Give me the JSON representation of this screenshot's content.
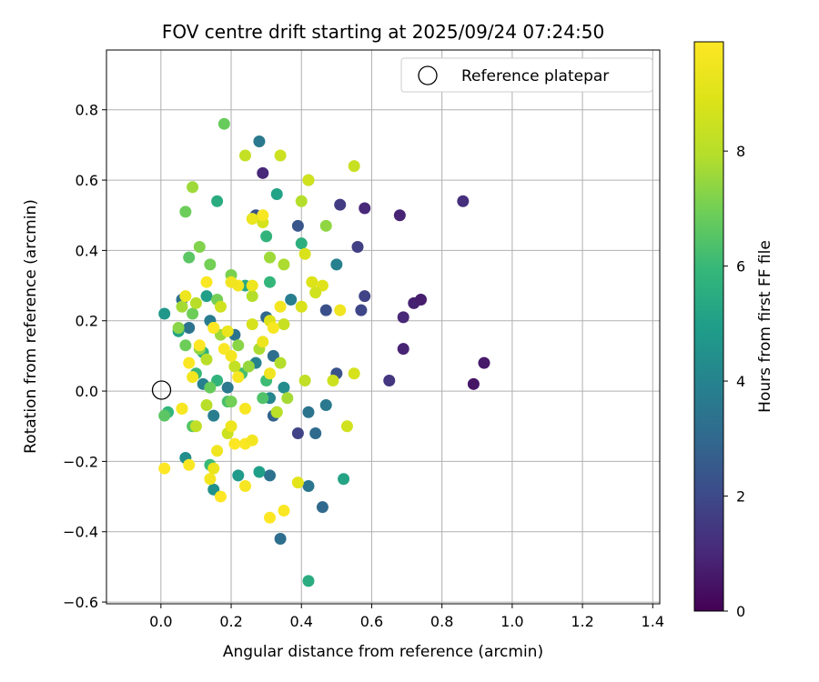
{
  "chart_data": {
    "type": "scatter",
    "title": "FOV centre drift starting at 2025/09/24 07:24:50",
    "xlabel": "Angular distance from reference (arcmin)",
    "ylabel": "Rotation from reference (arcmin)",
    "xlim": [
      -0.155,
      1.42
    ],
    "ylim": [
      -0.605,
      0.97
    ],
    "xticks": [
      0.0,
      0.2,
      0.4,
      0.6,
      0.8,
      1.0,
      1.2,
      1.4
    ],
    "xtick_labels": [
      "0.0",
      "0.2",
      "0.4",
      "0.6",
      "0.8",
      "1.0",
      "1.2",
      "1.4"
    ],
    "yticks": [
      -0.6,
      -0.4,
      -0.2,
      0.0,
      0.2,
      0.4,
      0.6,
      0.8
    ],
    "ytick_labels": [
      "−0.6",
      "−0.4",
      "−0.2",
      "0.0",
      "0.2",
      "0.4",
      "0.6",
      "0.8"
    ],
    "grid": true,
    "legend": {
      "label": "Reference platepar",
      "placement": "top-right"
    },
    "reference_point": {
      "x": 0.0,
      "y": 0.0
    },
    "colorbar": {
      "label": "Hours from first FF file",
      "colormap": "viridis",
      "min": 0,
      "max": 9.9,
      "ticks": [
        0,
        2,
        4,
        6,
        8
      ],
      "tick_labels": [
        "0",
        "2",
        "4",
        "6",
        "8"
      ]
    },
    "points": [
      {
        "x": 0.86,
        "y": 0.54,
        "h": 1.2
      },
      {
        "x": 0.58,
        "y": 0.52,
        "h": 1.0
      },
      {
        "x": 0.68,
        "y": 0.5,
        "h": 0.9
      },
      {
        "x": 0.51,
        "y": 0.53,
        "h": 1.6
      },
      {
        "x": 0.29,
        "y": 0.62,
        "h": 1.0
      },
      {
        "x": 0.56,
        "y": 0.41,
        "h": 1.7
      },
      {
        "x": 0.72,
        "y": 0.25,
        "h": 0.8
      },
      {
        "x": 0.74,
        "y": 0.26,
        "h": 0.7
      },
      {
        "x": 0.69,
        "y": 0.21,
        "h": 1.0
      },
      {
        "x": 0.58,
        "y": 0.27,
        "h": 1.8
      },
      {
        "x": 0.57,
        "y": 0.23,
        "h": 1.9
      },
      {
        "x": 0.47,
        "y": 0.23,
        "h": 2.2
      },
      {
        "x": 0.69,
        "y": 0.12,
        "h": 0.9
      },
      {
        "x": 0.65,
        "y": 0.03,
        "h": 1.4
      },
      {
        "x": 0.92,
        "y": 0.08,
        "h": 0.6
      },
      {
        "x": 0.89,
        "y": 0.02,
        "h": 0.5
      },
      {
        "x": 0.39,
        "y": 0.47,
        "h": 2.4
      },
      {
        "x": 0.27,
        "y": 0.5,
        "h": 2.3
      },
      {
        "x": 0.39,
        "y": -0.12,
        "h": 1.8
      },
      {
        "x": 0.5,
        "y": 0.05,
        "h": 2.3
      },
      {
        "x": 0.44,
        "y": -0.12,
        "h": 3.1
      },
      {
        "x": 0.46,
        "y": -0.33,
        "h": 3.0
      },
      {
        "x": 0.34,
        "y": -0.42,
        "h": 3.2
      },
      {
        "x": 0.32,
        "y": -0.07,
        "h": 2.8
      },
      {
        "x": 0.42,
        "y": -0.27,
        "h": 3.5
      },
      {
        "x": 0.31,
        "y": -0.24,
        "h": 3.3
      },
      {
        "x": 0.47,
        "y": -0.04,
        "h": 3.6
      },
      {
        "x": 0.42,
        "y": -0.06,
        "h": 3.4
      },
      {
        "x": 0.28,
        "y": 0.71,
        "h": 3.6
      },
      {
        "x": 0.3,
        "y": 0.21,
        "h": 3.0
      },
      {
        "x": 0.32,
        "y": 0.1,
        "h": 3.2
      },
      {
        "x": 0.37,
        "y": 0.26,
        "h": 3.8
      },
      {
        "x": 0.5,
        "y": 0.36,
        "h": 3.9
      },
      {
        "x": 0.21,
        "y": 0.16,
        "h": 3.4
      },
      {
        "x": 0.19,
        "y": 0.01,
        "h": 3.6
      },
      {
        "x": 0.15,
        "y": -0.07,
        "h": 3.8
      },
      {
        "x": 0.12,
        "y": 0.02,
        "h": 3.9
      },
      {
        "x": 0.06,
        "y": 0.26,
        "h": 3.3
      },
      {
        "x": 0.08,
        "y": 0.18,
        "h": 3.4
      },
      {
        "x": 0.14,
        "y": 0.2,
        "h": 3.7
      },
      {
        "x": 0.27,
        "y": 0.08,
        "h": 4.0
      },
      {
        "x": 0.31,
        "y": -0.02,
        "h": 4.1
      },
      {
        "x": 0.35,
        "y": 0.01,
        "h": 4.3
      },
      {
        "x": 0.07,
        "y": -0.19,
        "h": 4.4
      },
      {
        "x": 0.15,
        "y": -0.28,
        "h": 4.5
      },
      {
        "x": 0.22,
        "y": -0.24,
        "h": 4.8
      },
      {
        "x": 0.28,
        "y": -0.23,
        "h": 5.0
      },
      {
        "x": 0.42,
        "y": -0.54,
        "h": 5.5
      },
      {
        "x": 0.52,
        "y": -0.25,
        "h": 5.2
      },
      {
        "x": 0.33,
        "y": 0.56,
        "h": 5.1
      },
      {
        "x": 0.16,
        "y": 0.54,
        "h": 5.5
      },
      {
        "x": 0.3,
        "y": 0.44,
        "h": 5.8
      },
      {
        "x": 0.4,
        "y": 0.42,
        "h": 5.6
      },
      {
        "x": 0.31,
        "y": 0.31,
        "h": 5.9
      },
      {
        "x": 0.24,
        "y": 0.3,
        "h": 5.4
      },
      {
        "x": 0.13,
        "y": 0.27,
        "h": 5.0
      },
      {
        "x": 0.01,
        "y": 0.22,
        "h": 4.7
      },
      {
        "x": 0.05,
        "y": 0.17,
        "h": 5.2
      },
      {
        "x": 0.12,
        "y": 0.11,
        "h": 5.7
      },
      {
        "x": 0.1,
        "y": 0.05,
        "h": 6.0
      },
      {
        "x": 0.16,
        "y": 0.03,
        "h": 5.8
      },
      {
        "x": 0.23,
        "y": 0.05,
        "h": 6.2
      },
      {
        "x": 0.3,
        "y": 0.03,
        "h": 6.1
      },
      {
        "x": 0.29,
        "y": -0.02,
        "h": 6.4
      },
      {
        "x": 0.19,
        "y": -0.03,
        "h": 6.3
      },
      {
        "x": 0.09,
        "y": -0.1,
        "h": 6.5
      },
      {
        "x": 0.02,
        "y": -0.06,
        "h": 5.9
      },
      {
        "x": 0.01,
        "y": -0.07,
        "h": 6.6
      },
      {
        "x": 0.14,
        "y": -0.21,
        "h": 6.0
      },
      {
        "x": 0.18,
        "y": 0.76,
        "h": 6.8
      },
      {
        "x": 0.42,
        "y": 0.6,
        "h": 6.7
      },
      {
        "x": 0.07,
        "y": 0.51,
        "h": 6.9
      },
      {
        "x": 0.08,
        "y": 0.38,
        "h": 6.6
      },
      {
        "x": 0.14,
        "y": 0.36,
        "h": 7.0
      },
      {
        "x": 0.11,
        "y": 0.41,
        "h": 7.2
      },
      {
        "x": 0.2,
        "y": 0.33,
        "h": 7.1
      },
      {
        "x": 0.16,
        "y": 0.26,
        "h": 7.0
      },
      {
        "x": 0.09,
        "y": 0.22,
        "h": 6.9
      },
      {
        "x": 0.05,
        "y": 0.18,
        "h": 7.3
      },
      {
        "x": 0.11,
        "y": 0.12,
        "h": 7.4
      },
      {
        "x": 0.17,
        "y": 0.16,
        "h": 7.6
      },
      {
        "x": 0.22,
        "y": 0.13,
        "h": 7.3
      },
      {
        "x": 0.25,
        "y": 0.07,
        "h": 7.5
      },
      {
        "x": 0.28,
        "y": 0.12,
        "h": 7.8
      },
      {
        "x": 0.34,
        "y": 0.08,
        "h": 7.9
      },
      {
        "x": 0.36,
        "y": -0.02,
        "h": 7.7
      },
      {
        "x": 0.33,
        "y": -0.06,
        "h": 7.2
      },
      {
        "x": 0.2,
        "y": -0.03,
        "h": 7.0
      },
      {
        "x": 0.14,
        "y": 0.01,
        "h": 6.8
      },
      {
        "x": 0.07,
        "y": 0.13,
        "h": 6.9
      },
      {
        "x": 0.06,
        "y": 0.24,
        "h": 7.7
      },
      {
        "x": 0.1,
        "y": 0.25,
        "h": 8.0
      },
      {
        "x": 0.26,
        "y": 0.27,
        "h": 7.9
      },
      {
        "x": 0.31,
        "y": 0.38,
        "h": 7.6
      },
      {
        "x": 0.35,
        "y": 0.36,
        "h": 7.8
      },
      {
        "x": 0.4,
        "y": 0.54,
        "h": 7.9
      },
      {
        "x": 0.47,
        "y": 0.47,
        "h": 7.4
      },
      {
        "x": 0.09,
        "y": 0.58,
        "h": 7.6
      },
      {
        "x": 0.24,
        "y": 0.67,
        "h": 8.3
      },
      {
        "x": 0.34,
        "y": 0.67,
        "h": 8.5
      },
      {
        "x": 0.42,
        "y": 0.6,
        "h": 8.6
      },
      {
        "x": 0.55,
        "y": 0.64,
        "h": 8.4
      },
      {
        "x": 0.29,
        "y": 0.48,
        "h": 8.7
      },
      {
        "x": 0.41,
        "y": 0.39,
        "h": 8.8
      },
      {
        "x": 0.43,
        "y": 0.31,
        "h": 8.9
      },
      {
        "x": 0.46,
        "y": 0.3,
        "h": 9.0
      },
      {
        "x": 0.44,
        "y": 0.28,
        "h": 8.6
      },
      {
        "x": 0.4,
        "y": 0.24,
        "h": 8.8
      },
      {
        "x": 0.35,
        "y": 0.19,
        "h": 8.4
      },
      {
        "x": 0.31,
        "y": 0.2,
        "h": 8.9
      },
      {
        "x": 0.26,
        "y": 0.19,
        "h": 8.7
      },
      {
        "x": 0.17,
        "y": 0.24,
        "h": 8.6
      },
      {
        "x": 0.15,
        "y": 0.18,
        "h": 8.2
      },
      {
        "x": 0.13,
        "y": 0.09,
        "h": 8.0
      },
      {
        "x": 0.21,
        "y": 0.07,
        "h": 8.3
      },
      {
        "x": 0.41,
        "y": 0.03,
        "h": 8.2
      },
      {
        "x": 0.49,
        "y": 0.03,
        "h": 8.5
      },
      {
        "x": 0.55,
        "y": 0.05,
        "h": 8.7
      },
      {
        "x": 0.53,
        "y": -0.1,
        "h": 8.6
      },
      {
        "x": 0.33,
        "y": -0.06,
        "h": 8.1
      },
      {
        "x": 0.19,
        "y": -0.12,
        "h": 8.5
      },
      {
        "x": 0.1,
        "y": -0.1,
        "h": 8.2
      },
      {
        "x": 0.06,
        "y": -0.05,
        "h": 8.4
      },
      {
        "x": 0.13,
        "y": -0.04,
        "h": 8.0
      },
      {
        "x": 0.29,
        "y": 0.5,
        "h": 9.7
      },
      {
        "x": 0.26,
        "y": 0.49,
        "h": 9.3
      },
      {
        "x": 0.26,
        "y": 0.3,
        "h": 9.4
      },
      {
        "x": 0.22,
        "y": 0.3,
        "h": 9.6
      },
      {
        "x": 0.2,
        "y": 0.31,
        "h": 9.5
      },
      {
        "x": 0.13,
        "y": 0.31,
        "h": 9.8
      },
      {
        "x": 0.34,
        "y": 0.24,
        "h": 9.6
      },
      {
        "x": 0.51,
        "y": 0.23,
        "h": 9.5
      },
      {
        "x": 0.32,
        "y": 0.18,
        "h": 9.7
      },
      {
        "x": 0.19,
        "y": 0.17,
        "h": 9.3
      },
      {
        "x": 0.15,
        "y": 0.18,
        "h": 9.9
      },
      {
        "x": 0.18,
        "y": 0.12,
        "h": 9.8
      },
      {
        "x": 0.2,
        "y": 0.1,
        "h": 9.6
      },
      {
        "x": 0.29,
        "y": 0.14,
        "h": 9.4
      },
      {
        "x": 0.22,
        "y": 0.04,
        "h": 9.7
      },
      {
        "x": 0.31,
        "y": 0.05,
        "h": 9.5
      },
      {
        "x": 0.11,
        "y": 0.13,
        "h": 9.9
      },
      {
        "x": 0.08,
        "y": 0.08,
        "h": 9.8
      },
      {
        "x": 0.09,
        "y": 0.04,
        "h": 9.6
      },
      {
        "x": 0.07,
        "y": 0.27,
        "h": 9.4
      },
      {
        "x": 0.06,
        "y": -0.05,
        "h": 9.7
      },
      {
        "x": 0.01,
        "y": -0.22,
        "h": 9.9
      },
      {
        "x": 0.08,
        "y": -0.21,
        "h": 9.8
      },
      {
        "x": 0.14,
        "y": -0.25,
        "h": 9.6
      },
      {
        "x": 0.17,
        "y": -0.3,
        "h": 9.9
      },
      {
        "x": 0.24,
        "y": -0.27,
        "h": 9.7
      },
      {
        "x": 0.16,
        "y": -0.17,
        "h": 9.5
      },
      {
        "x": 0.21,
        "y": -0.15,
        "h": 9.9
      },
      {
        "x": 0.24,
        "y": -0.15,
        "h": 9.8
      },
      {
        "x": 0.26,
        "y": -0.14,
        "h": 9.6
      },
      {
        "x": 0.2,
        "y": -0.1,
        "h": 9.4
      },
      {
        "x": 0.24,
        "y": -0.05,
        "h": 9.7
      },
      {
        "x": 0.31,
        "y": -0.36,
        "h": 9.9
      },
      {
        "x": 0.35,
        "y": -0.34,
        "h": 9.8
      },
      {
        "x": 0.39,
        "y": -0.26,
        "h": 9.1
      },
      {
        "x": 0.15,
        "y": -0.22,
        "h": 9.3
      }
    ]
  }
}
